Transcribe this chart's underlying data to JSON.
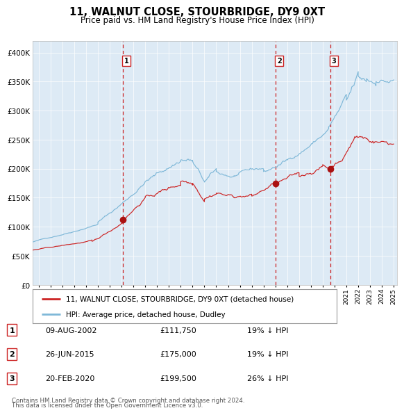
{
  "title": "11, WALNUT CLOSE, STOURBRIDGE, DY9 0XT",
  "subtitle": "Price paid vs. HM Land Registry's House Price Index (HPI)",
  "legend_line1": "11, WALNUT CLOSE, STOURBRIDGE, DY9 0XT (detached house)",
  "legend_line2": "HPI: Average price, detached house, Dudley",
  "footer1": "Contains HM Land Registry data © Crown copyright and database right 2024.",
  "footer2": "This data is licensed under the Open Government Licence v3.0.",
  "transactions": [
    {
      "id": 1,
      "date": "09-AUG-2002",
      "price": "£111,750",
      "pct": "19% ↓ HPI",
      "year": 2002.6,
      "price_val": 111750
    },
    {
      "id": 2,
      "date": "26-JUN-2015",
      "price": "£175,000",
      "pct": "19% ↓ HPI",
      "year": 2015.5,
      "price_val": 175000
    },
    {
      "id": 3,
      "date": "20-FEB-2020",
      "price": "£199,500",
      "pct": "26% ↓ HPI",
      "year": 2020.13,
      "price_val": 199500
    }
  ],
  "hpi_color": "#7fb8d8",
  "price_color": "#cc2222",
  "plot_bg": "#ddeaf5",
  "vline_color": "#cc2222",
  "marker_color": "#aa1111",
  "ylim": [
    0,
    420000
  ],
  "xlim_start": 1995.0,
  "xlim_end": 2025.8,
  "yticks": [
    0,
    50000,
    100000,
    150000,
    200000,
    250000,
    300000,
    350000,
    400000
  ]
}
